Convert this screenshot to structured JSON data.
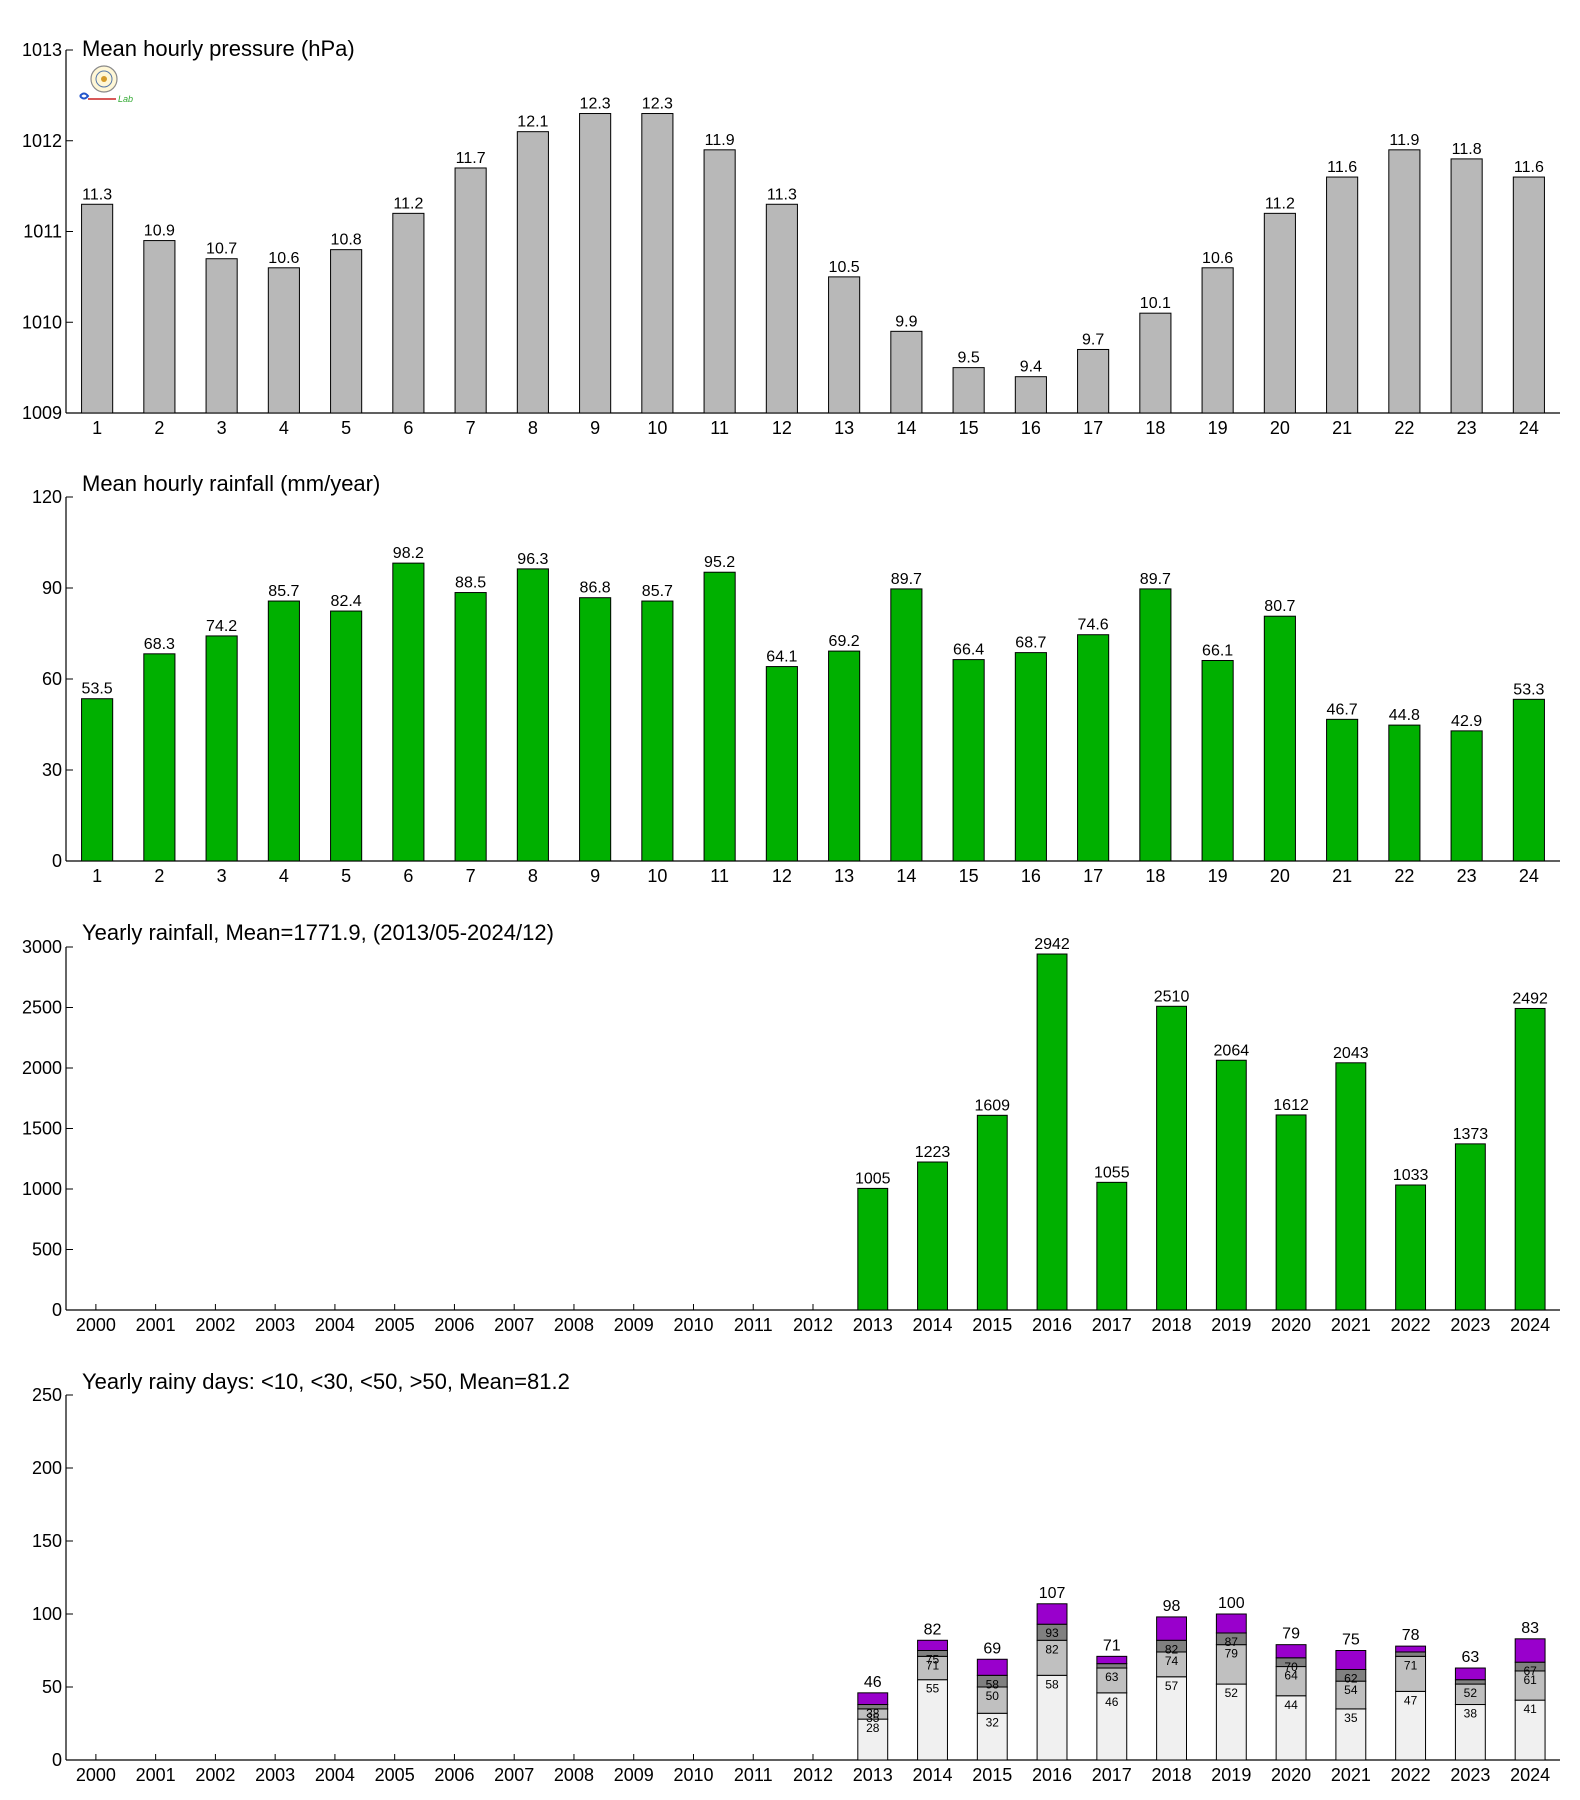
{
  "colors": {
    "gray_bar": "#b8b8b8",
    "green_bar": "#00b000",
    "rain_lt10": "#f0f0f0",
    "rain_lt30": "#c0c0c0",
    "rain_lt50": "#808080",
    "rain_gt50": "#9900cc"
  },
  "logo": {
    "label": "Lab"
  },
  "chart_data": [
    {
      "id": "pressure",
      "type": "bar",
      "title": "Mean hourly pressure (hPa)",
      "categories": [
        "1",
        "2",
        "3",
        "4",
        "5",
        "6",
        "7",
        "8",
        "9",
        "10",
        "11",
        "12",
        "13",
        "14",
        "15",
        "16",
        "17",
        "18",
        "19",
        "20",
        "21",
        "22",
        "23",
        "24"
      ],
      "values": [
        1011.3,
        1010.9,
        1010.7,
        1010.6,
        1010.8,
        1011.2,
        1011.7,
        1012.1,
        1012.3,
        1012.3,
        1011.9,
        1011.3,
        1010.5,
        1009.9,
        1009.5,
        1009.4,
        1009.7,
        1010.1,
        1010.6,
        1011.2,
        1011.6,
        1011.9,
        1011.8,
        1011.6
      ],
      "labels": [
        "11.3",
        "10.9",
        "10.7",
        "10.6",
        "10.8",
        "11.2",
        "11.7",
        "12.1",
        "12.3",
        "12.3",
        "11.9",
        "11.3",
        "10.5",
        "9.9",
        "9.5",
        "9.4",
        "9.7",
        "10.1",
        "10.6",
        "11.2",
        "11.6",
        "11.9",
        "11.8",
        "11.6"
      ],
      "ylim": [
        1009,
        1013
      ],
      "yticks": [
        1009,
        1010,
        1011,
        1012,
        1013
      ],
      "color": "gray_bar"
    },
    {
      "id": "hourly_rain",
      "type": "bar",
      "title": "Mean hourly rainfall (mm/year)",
      "categories": [
        "1",
        "2",
        "3",
        "4",
        "5",
        "6",
        "7",
        "8",
        "9",
        "10",
        "11",
        "12",
        "13",
        "14",
        "15",
        "16",
        "17",
        "18",
        "19",
        "20",
        "21",
        "22",
        "23",
        "24"
      ],
      "values": [
        53.5,
        68.3,
        74.2,
        85.7,
        82.4,
        98.2,
        88.5,
        96.3,
        86.8,
        85.7,
        95.2,
        64.1,
        69.2,
        89.7,
        66.4,
        68.7,
        74.6,
        89.7,
        66.1,
        80.7,
        46.7,
        44.8,
        42.9,
        53.3
      ],
      "labels": [
        "53.5",
        "68.3",
        "74.2",
        "85.7",
        "82.4",
        "98.2",
        "88.5",
        "96.3",
        "86.8",
        "85.7",
        "95.2",
        "64.1",
        "69.2",
        "89.7",
        "66.4",
        "68.7",
        "74.6",
        "89.7",
        "66.1",
        "80.7",
        "46.7",
        "44.8",
        "42.9",
        "53.3"
      ],
      "ylim": [
        0,
        120
      ],
      "yticks": [
        0,
        30,
        60,
        90,
        120
      ],
      "color": "green_bar"
    },
    {
      "id": "yearly_rain",
      "type": "bar",
      "title": "Yearly rainfall, Mean=1771.9, (2013/05-2024/12)",
      "categories": [
        "2000",
        "2001",
        "2002",
        "2003",
        "2004",
        "2005",
        "2006",
        "2007",
        "2008",
        "2009",
        "2010",
        "2011",
        "2012",
        "2013",
        "2014",
        "2015",
        "2016",
        "2017",
        "2018",
        "2019",
        "2020",
        "2021",
        "2022",
        "2023",
        "2024"
      ],
      "values": [
        null,
        null,
        null,
        null,
        null,
        null,
        null,
        null,
        null,
        null,
        null,
        null,
        null,
        1005,
        1223,
        1609,
        2942,
        1055,
        2510,
        2064,
        1612,
        2043,
        1033,
        1373,
        2492
      ],
      "labels": [
        "",
        "",
        "",
        "",
        "",
        "",
        "",
        "",
        "",
        "",
        "",
        "",
        "",
        "1005",
        "1223",
        "1609",
        "2942",
        "1055",
        "2510",
        "2064",
        "1612",
        "2043",
        "1033",
        "1373",
        "2492"
      ],
      "ylim": [
        0,
        3000
      ],
      "yticks": [
        0,
        500,
        1000,
        1500,
        2000,
        2500,
        3000
      ],
      "color": "green_bar"
    },
    {
      "id": "rainy_days",
      "type": "bar",
      "stacked": true,
      "title": "Yearly rainy days: <10, <30, <50, >50, Mean=81.2",
      "categories": [
        "2000",
        "2001",
        "2002",
        "2003",
        "2004",
        "2005",
        "2006",
        "2007",
        "2008",
        "2009",
        "2010",
        "2011",
        "2012",
        "2013",
        "2014",
        "2015",
        "2016",
        "2017",
        "2018",
        "2019",
        "2020",
        "2021",
        "2022",
        "2023",
        "2024"
      ],
      "cumulative": [
        null,
        null,
        null,
        null,
        null,
        null,
        null,
        null,
        null,
        null,
        null,
        null,
        null,
        [
          28,
          35,
          38,
          46
        ],
        [
          55,
          71,
          75,
          82
        ],
        [
          32,
          50,
          58,
          69
        ],
        [
          58,
          82,
          93,
          107
        ],
        [
          46,
          63,
          66,
          71
        ],
        [
          57,
          74,
          82,
          98
        ],
        [
          52,
          79,
          87,
          100
        ],
        [
          44,
          64,
          70,
          79
        ],
        [
          35,
          54,
          62,
          75
        ],
        [
          47,
          71,
          74,
          78
        ],
        [
          38,
          52,
          55,
          63
        ],
        [
          41,
          61,
          67,
          83
        ]
      ],
      "segment_labels": [
        null,
        null,
        null,
        null,
        null,
        null,
        null,
        null,
        null,
        null,
        null,
        null,
        null,
        [
          "28",
          "35",
          "38"
        ],
        [
          "55",
          "71",
          "75"
        ],
        [
          "32",
          "50",
          "58"
        ],
        [
          "58",
          "82",
          "93"
        ],
        [
          "46",
          "63",
          ""
        ],
        [
          "57",
          "74",
          "82"
        ],
        [
          "52",
          "79",
          "87"
        ],
        [
          "44",
          "64",
          "70"
        ],
        [
          "35",
          "54",
          "62"
        ],
        [
          "47",
          "71",
          ""
        ],
        [
          "38",
          "52",
          ""
        ],
        [
          "41",
          "61",
          "67"
        ]
      ],
      "totals": [
        "",
        "",
        "",
        "",
        "",
        "",
        "",
        "",
        "",
        "",
        "",
        "",
        "",
        "46",
        "82",
        "69",
        "107",
        "71",
        "98",
        "100",
        "79",
        "75",
        "78",
        "63",
        "83"
      ],
      "ylim": [
        0,
        250
      ],
      "yticks": [
        0,
        50,
        100,
        150,
        200,
        250
      ],
      "segment_colors": [
        "rain_lt10",
        "rain_lt30",
        "rain_lt50",
        "rain_gt50"
      ]
    }
  ]
}
